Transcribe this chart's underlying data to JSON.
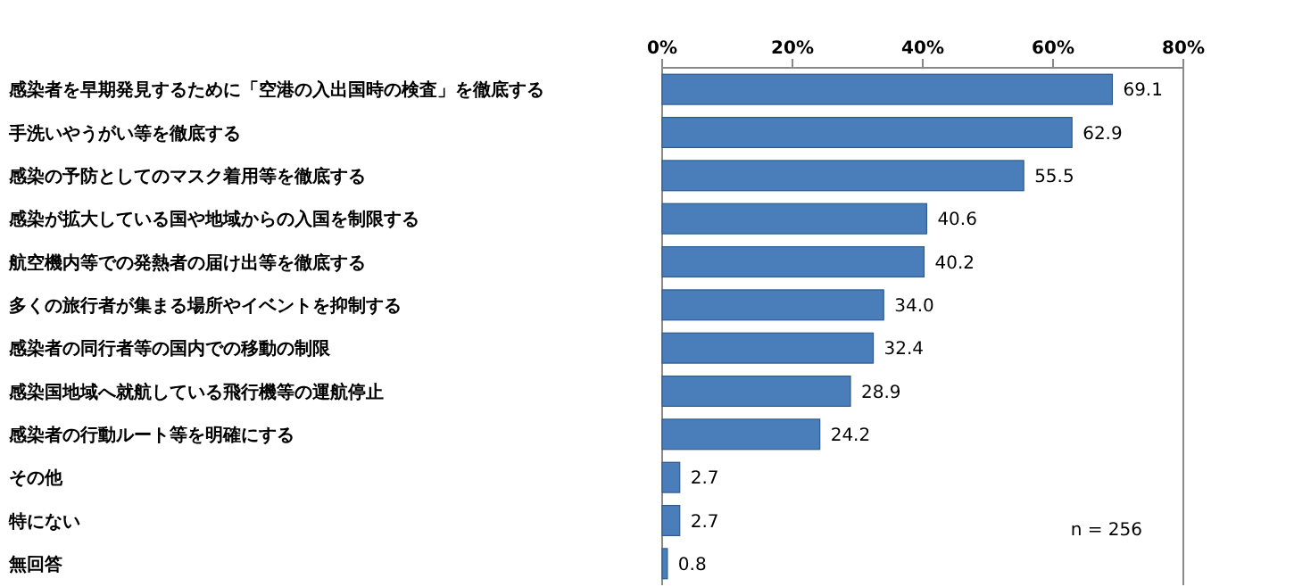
{
  "chart_data": {
    "type": "bar",
    "orientation": "horizontal",
    "categories": [
      "感染者を早期発見するために「空港の入出国時の検査」を徹底する",
      "手洗いやうがい等を徹底する",
      "感染の予防としてのマスク着用等を徹底する",
      "感染が拡大している国や地域からの入国を制限する",
      "航空機内等での発熱者の届け出等を徹底する",
      "多くの旅行者が集まる場所やイベントを抑制する",
      "感染者の同行者等の国内での移動の制限",
      "感染国地域へ就航している飛行機等の運航停止",
      "感染者の行動ルート等を明確にする",
      "その他",
      "特にない",
      "無回答"
    ],
    "values": [
      69.1,
      62.9,
      55.5,
      40.6,
      40.2,
      34.0,
      32.4,
      28.9,
      24.2,
      2.7,
      2.7,
      0.8
    ],
    "value_labels": [
      "69.1",
      "62.9",
      "55.5",
      "40.6",
      "40.2",
      "34.0",
      "32.4",
      "28.9",
      "24.2",
      "2.7",
      "2.7",
      "0.8"
    ],
    "color": "#4a7ebb",
    "xlim": [
      0,
      80
    ],
    "xticks": [
      {
        "value": 0,
        "label": "0%"
      },
      {
        "value": 20,
        "label": "20%"
      },
      {
        "value": 40,
        "label": "40%"
      },
      {
        "value": 60,
        "label": "60%"
      },
      {
        "value": 80,
        "label": "80%"
      }
    ],
    "grid": false,
    "annotations": [
      "n = 256"
    ]
  }
}
